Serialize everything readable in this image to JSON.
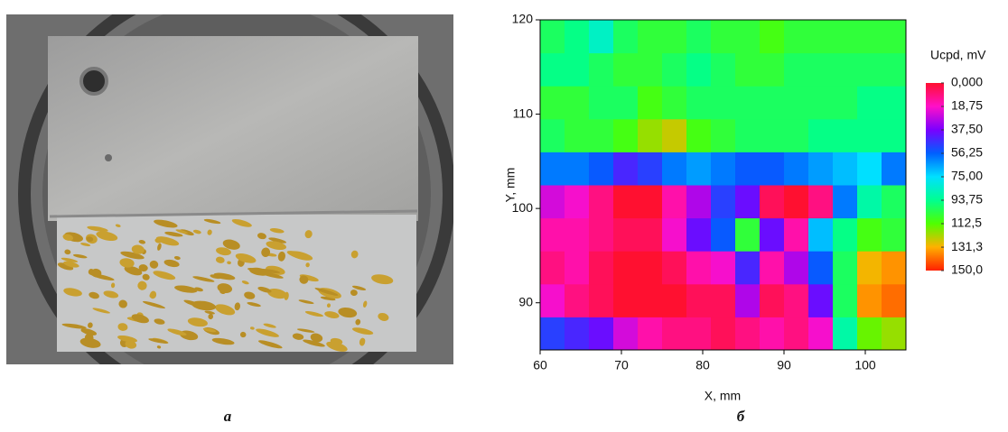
{
  "panels": [
    {
      "label": "a"
    },
    {
      "label": "б"
    }
  ],
  "chart_data": {
    "type": "heatmap",
    "xlabel": "X, mm",
    "ylabel": "Y, mm",
    "colorbar_title": "Ucpd, mV",
    "xlim": [
      60,
      105
    ],
    "xticks": [
      60,
      70,
      80,
      90,
      100
    ],
    "ylim": [
      85,
      120
    ],
    "yticks": [
      90,
      100,
      110,
      120
    ],
    "xbins": [
      60,
      63,
      66,
      69,
      72,
      75,
      78,
      81,
      84,
      87,
      90,
      93,
      96,
      99,
      102,
      105
    ],
    "ybins": [
      85,
      88.5,
      92,
      95.5,
      99,
      102.5,
      106,
      109.5,
      113,
      116.5,
      120
    ],
    "z": [
      [
        50,
        45,
        40,
        25,
        15,
        10,
        10,
        5,
        10,
        15,
        10,
        20,
        90,
        115,
        120
      ],
      [
        20,
        10,
        5,
        0,
        0,
        0,
        5,
        5,
        30,
        5,
        10,
        40,
        100,
        135,
        140
      ],
      [
        10,
        15,
        5,
        0,
        0,
        5,
        15,
        20,
        45,
        15,
        30,
        55,
        100,
        130,
        135
      ],
      [
        15,
        15,
        10,
        5,
        5,
        20,
        40,
        55,
        105,
        40,
        15,
        70,
        95,
        110,
        105
      ],
      [
        25,
        20,
        10,
        0,
        0,
        15,
        30,
        50,
        40,
        5,
        0,
        10,
        60,
        90,
        100
      ],
      [
        60,
        60,
        55,
        45,
        50,
        60,
        65,
        60,
        55,
        55,
        60,
        65,
        70,
        75,
        60
      ],
      [
        100,
        105,
        105,
        110,
        120,
        125,
        110,
        105,
        100,
        100,
        100,
        95,
        95,
        95,
        95
      ],
      [
        105,
        105,
        100,
        100,
        110,
        105,
        100,
        100,
        100,
        100,
        100,
        100,
        100,
        95,
        95
      ],
      [
        95,
        95,
        100,
        105,
        105,
        100,
        95,
        100,
        105,
        105,
        100,
        100,
        100,
        100,
        100
      ],
      [
        100,
        95,
        85,
        100,
        105,
        105,
        100,
        105,
        105,
        110,
        105,
        105,
        105,
        105,
        105
      ]
    ],
    "zlim": [
      0,
      150
    ],
    "colorscale": [
      "#ff1030",
      "#ff10c8",
      "#7a00ff",
      "#0060ff",
      "#00e0ff",
      "#00ff90",
      "#50ff00",
      "#ffb000",
      "#ff2000"
    ],
    "cticks": [
      {
        "value": 0,
        "label": "0,000"
      },
      {
        "value": 18.75,
        "label": "18,75"
      },
      {
        "value": 37.5,
        "label": "37,50"
      },
      {
        "value": 56.25,
        "label": "56,25"
      },
      {
        "value": 75,
        "label": "75,00"
      },
      {
        "value": 93.75,
        "label": "93,75"
      },
      {
        "value": 112.5,
        "label": "112,5"
      },
      {
        "value": 131.3,
        "label": "131,3"
      },
      {
        "value": 150,
        "label": "150,0"
      }
    ]
  }
}
